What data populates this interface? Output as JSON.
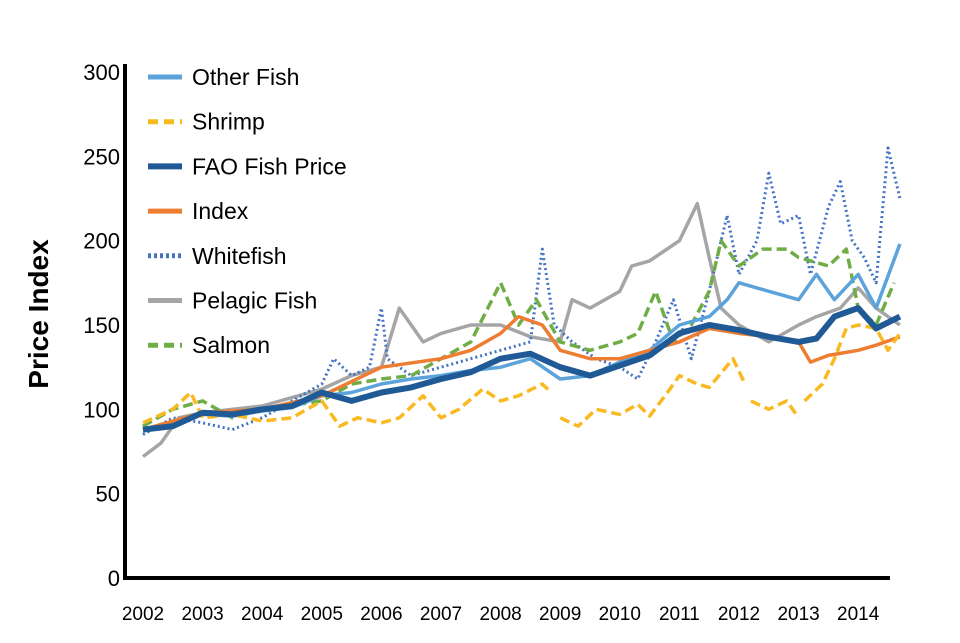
{
  "chart_data": {
    "type": "line",
    "title": "",
    "xlabel": "",
    "ylabel": "Price Index",
    "ylim": [
      0,
      300
    ],
    "xlim": [
      2002,
      2014.8
    ],
    "yticks": [
      "0",
      "50",
      "100",
      "150",
      "200",
      "250",
      "300"
    ],
    "xticks": [
      "2002",
      "2003",
      "2004",
      "2005",
      "2006",
      "2007",
      "2008",
      "2009",
      "2010",
      "2011",
      "2012",
      "2013",
      "2014"
    ],
    "grid": false,
    "legend_position": "top-left",
    "series": [
      {
        "name": "Other Fish",
        "color": "#5BA3DA",
        "style": "solid",
        "x": [
          2002,
          2002.5,
          2003,
          2003.5,
          2004,
          2004.5,
          2005,
          2005.5,
          2006,
          2006.5,
          2007,
          2007.5,
          2008,
          2008.5,
          2009,
          2009.5,
          2010,
          2010.5,
          2011,
          2011.5,
          2011.8,
          2012,
          2012.5,
          2013,
          2013.3,
          2013.6,
          2014,
          2014.3,
          2014.7
        ],
        "y": [
          88,
          92,
          97,
          96,
          99,
          101,
          108,
          110,
          115,
          118,
          120,
          123,
          125,
          130,
          118,
          120,
          128,
          135,
          150,
          155,
          165,
          175,
          170,
          165,
          180,
          165,
          180,
          160,
          198
        ]
      },
      {
        "name": "Shrimp",
        "color": "#F9B921",
        "style": "dashed",
        "x": [
          2002,
          2002.5,
          2002.8,
          2003,
          2003.5,
          2004,
          2004.5,
          2005,
          2005.3,
          2005.6,
          2006,
          2006.3,
          2006.7,
          2007,
          2007.3,
          2007.7,
          2008,
          2008.3,
          2008.7,
          2008.85,
          null,
          2009,
          2009.3,
          2009.6,
          2010,
          2010.3,
          2010.5,
          2010.8,
          2011,
          2011.3,
          2011.5,
          2011.9,
          2012.1,
          null,
          2012.2,
          2012.5,
          2012.8,
          2013,
          null,
          2013.1,
          2013.4,
          2013.6,
          2013.8,
          2014,
          2014.3,
          2014.5,
          2014.7
        ],
        "y": [
          92,
          100,
          110,
          95,
          97,
          93,
          95,
          105,
          90,
          95,
          92,
          95,
          108,
          95,
          100,
          112,
          105,
          108,
          115,
          110,
          null,
          95,
          90,
          100,
          97,
          103,
          96,
          110,
          120,
          115,
          113,
          130,
          115,
          null,
          105,
          100,
          105,
          95,
          null,
          105,
          115,
          130,
          148,
          150,
          148,
          135,
          145
        ]
      },
      {
        "name": "FAO Fish Price",
        "color": "#1F5A96",
        "style": "solid-thick",
        "x": [
          2002,
          2002.5,
          2003,
          2003.5,
          2004,
          2004.5,
          2005,
          2005.5,
          2006,
          2006.5,
          2007,
          2007.5,
          2008,
          2008.5,
          2009,
          2009.3,
          2009.5,
          2010,
          2010.5,
          2011,
          2011.5,
          2012,
          2012.5,
          2013,
          2013.3,
          2013.6,
          2014,
          2014.3,
          2014.7
        ],
        "y": [
          88,
          90,
          98,
          97,
          100,
          102,
          110,
          105,
          110,
          113,
          118,
          122,
          130,
          133,
          125,
          122,
          120,
          126,
          132,
          145,
          150,
          147,
          143,
          140,
          142,
          155,
          160,
          148,
          155
        ]
      },
      {
        "name": "Index",
        "color": "#ED7D31",
        "style": "solid",
        "x": [
          2002,
          2003,
          2004,
          2005,
          2006,
          2007,
          2007.5,
          2008,
          2008.3,
          2008.7,
          2009,
          2009.5,
          2010,
          2010.5,
          2011,
          2011.5,
          2012,
          2012.5,
          2013,
          2013.2,
          2013.5,
          2014,
          2014.3,
          2014.7
        ],
        "y": [
          88,
          98,
          100,
          108,
          125,
          130,
          135,
          145,
          155,
          150,
          135,
          130,
          130,
          135,
          140,
          148,
          145,
          143,
          140,
          128,
          132,
          135,
          138,
          143
        ]
      },
      {
        "name": "Whitefish",
        "color": "#4472C4",
        "style": "dotted",
        "x": [
          2002,
          2002.5,
          2003,
          2003.5,
          2004,
          2005,
          2005.2,
          2005.5,
          2005.8,
          2006,
          2006.1,
          2006.5,
          2007,
          2007.5,
          2008,
          2008.5,
          2008.7,
          2008.9,
          2009.2,
          2009.6,
          2010,
          2010.3,
          2010.6,
          2010.9,
          2011.2,
          2011.5,
          2011.8,
          2012,
          2012.3,
          2012.5,
          2012.7,
          2013,
          2013.2,
          2013.5,
          2013.7,
          2013.9,
          2014.1,
          2014.3,
          2014.5,
          2014.7
        ],
        "y": [
          85,
          95,
          92,
          88,
          95,
          115,
          130,
          120,
          125,
          160,
          130,
          120,
          125,
          130,
          135,
          140,
          195,
          150,
          140,
          130,
          125,
          118,
          140,
          165,
          130,
          170,
          215,
          180,
          200,
          240,
          210,
          215,
          180,
          220,
          235,
          200,
          190,
          175,
          255,
          225
        ]
      },
      {
        "name": "Pelagic Fish",
        "color": "#A5A5A5",
        "style": "solid",
        "x": [
          2002,
          2002.3,
          2002.6,
          2003,
          2004,
          2005,
          2005.5,
          2006,
          2006.3,
          2006.7,
          2007,
          2007.5,
          2008,
          2008.5,
          2009,
          2009.2,
          2009.5,
          2010,
          2010.2,
          2010.5,
          2011,
          2011.3,
          2011.5,
          2011.7,
          2012,
          2012.5,
          2013,
          2013.3,
          2013.7,
          2014,
          2014.3,
          2014.7
        ],
        "y": [
          72,
          80,
          95,
          98,
          102,
          112,
          120,
          125,
          160,
          140,
          145,
          150,
          150,
          143,
          140,
          165,
          160,
          170,
          185,
          188,
          200,
          222,
          190,
          160,
          150,
          140,
          150,
          155,
          160,
          172,
          160,
          150
        ]
      },
      {
        "name": "Salmon",
        "color": "#70AD47",
        "style": "dashed",
        "x": [
          2002,
          2002.5,
          2003,
          2003.5,
          2004,
          2005,
          2005.5,
          2006,
          2006.5,
          2007,
          2007.5,
          2008,
          2008.3,
          2008.6,
          2009,
          2009.5,
          2010,
          2010.3,
          2010.6,
          2010.9,
          2011.2,
          2011.5,
          2011.7,
          2012,
          2012.4,
          2012.8,
          2013,
          2013.5,
          2013.8,
          2014,
          2014.3,
          2014.6
        ],
        "y": [
          90,
          100,
          105,
          95,
          100,
          105,
          115,
          118,
          120,
          130,
          140,
          175,
          150,
          165,
          140,
          135,
          140,
          145,
          170,
          140,
          150,
          170,
          200,
          185,
          195,
          195,
          190,
          185,
          195,
          160,
          150,
          175
        ]
      }
    ]
  }
}
